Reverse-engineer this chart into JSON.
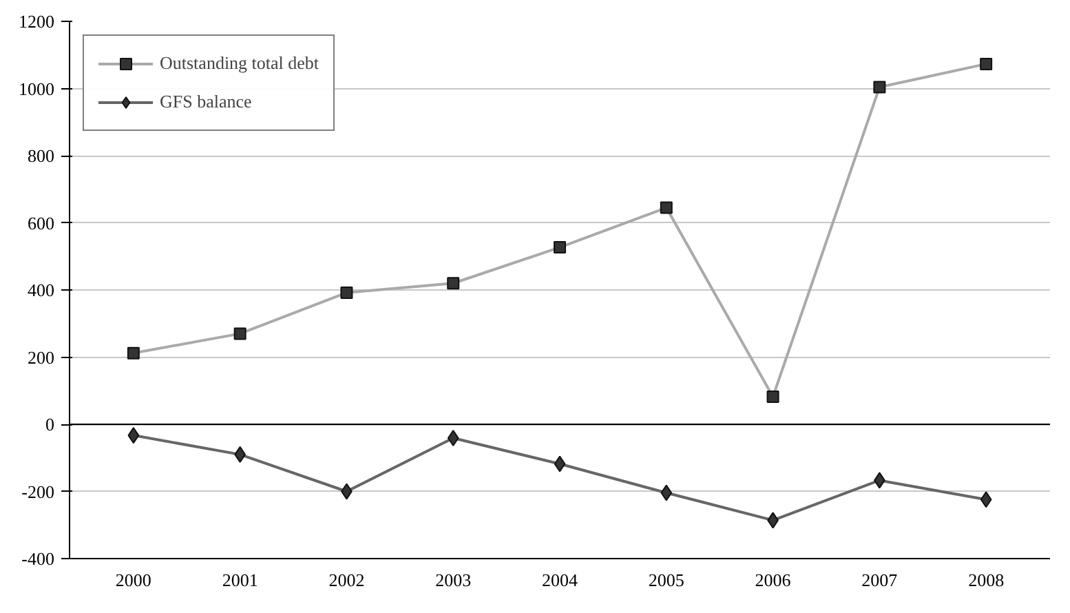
{
  "chart_data": {
    "type": "line",
    "categories": [
      "2000",
      "2001",
      "2002",
      "2003",
      "2004",
      "2005",
      "2006",
      "2007",
      "2008"
    ],
    "series": [
      {
        "name": "Outstanding total debt",
        "color": "#aaaaaa",
        "marker": "square",
        "values": [
          212,
          270,
          392,
          420,
          527,
          645,
          82,
          1004,
          1073
        ]
      },
      {
        "name": "GFS balance",
        "color": "#666666",
        "marker": "diamond",
        "values": [
          -33,
          -90,
          -200,
          -41,
          -118,
          -204,
          -286,
          -167,
          -224
        ]
      }
    ],
    "ylim": [
      -400,
      1200
    ],
    "yticks": [
      -400,
      -200,
      0,
      200,
      400,
      600,
      800,
      1000,
      1200
    ],
    "grid": "y",
    "legend": "top left",
    "line_style": "solid"
  }
}
